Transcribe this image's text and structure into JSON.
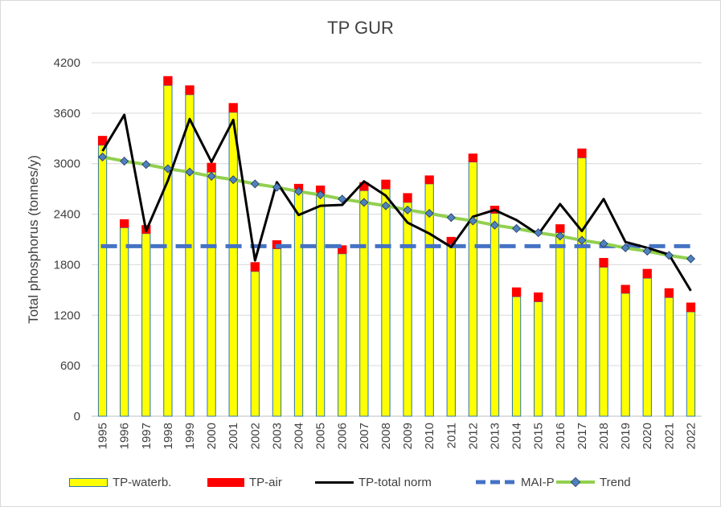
{
  "chart_data": {
    "type": "bar",
    "title": "TP GUR",
    "xlabel": "",
    "ylabel": "Total phosphorus (tonnes/y)",
    "ylim": [
      0,
      4200
    ],
    "yticks": [
      0,
      600,
      1200,
      1800,
      2400,
      3000,
      3600,
      4200
    ],
    "grid": true,
    "legend_position": "bottom",
    "categories": [
      "1995",
      "1996",
      "1997",
      "1998",
      "1999",
      "2000",
      "2001",
      "2002",
      "2003",
      "2004",
      "2005",
      "2006",
      "2007",
      "2008",
      "2009",
      "2010",
      "2011",
      "2012",
      "2013",
      "2014",
      "2015",
      "2016",
      "2017",
      "2018",
      "2019",
      "2020",
      "2021",
      "2022"
    ],
    "series": [
      {
        "name": "TP-waterb.",
        "kind": "stacked-bar",
        "color": "#ffff00",
        "edge": "#2e75b6",
        "values": [
          3220,
          2240,
          2170,
          3930,
          3820,
          2900,
          3610,
          1720,
          1990,
          2660,
          2640,
          1930,
          2680,
          2700,
          2540,
          2760,
          2030,
          3020,
          2410,
          1420,
          1360,
          2180,
          3070,
          1770,
          1460,
          1640,
          1410,
          1240
        ]
      },
      {
        "name": "TP-air",
        "kind": "stacked-bar",
        "color": "#ff0000",
        "values": [
          110,
          100,
          100,
          110,
          110,
          110,
          110,
          110,
          100,
          100,
          100,
          100,
          100,
          110,
          110,
          100,
          100,
          100,
          90,
          110,
          110,
          100,
          110,
          110,
          100,
          110,
          110,
          110
        ]
      },
      {
        "name": "TP-total norm",
        "kind": "line",
        "color": "#000000",
        "values": [
          3150,
          3580,
          2200,
          2800,
          3530,
          3020,
          3520,
          1850,
          2780,
          2390,
          2500,
          2510,
          2790,
          2620,
          2300,
          2170,
          2010,
          2370,
          2450,
          2330,
          2160,
          2520,
          2200,
          2580,
          2070,
          2000,
          1920,
          1490
        ]
      },
      {
        "name": "MAI-P",
        "kind": "dashed-line",
        "color": "#4472c4",
        "values": [
          2020,
          2020,
          2020,
          2020,
          2020,
          2020,
          2020,
          2020,
          2020,
          2020,
          2020,
          2020,
          2020,
          2020,
          2020,
          2020,
          2020,
          2020,
          2020,
          2020,
          2020,
          2020,
          2020,
          2020,
          2020,
          2020,
          2020,
          2020
        ]
      },
      {
        "name": "Trend",
        "kind": "line-markers",
        "color": "#92d050",
        "marker": "#4f81bd",
        "values": [
          3080,
          3030,
          2990,
          2940,
          2900,
          2850,
          2810,
          2760,
          2720,
          2670,
          2630,
          2580,
          2540,
          2500,
          2450,
          2410,
          2360,
          2320,
          2270,
          2230,
          2180,
          2140,
          2090,
          2050,
          2000,
          1960,
          1910,
          1870
        ]
      }
    ]
  }
}
